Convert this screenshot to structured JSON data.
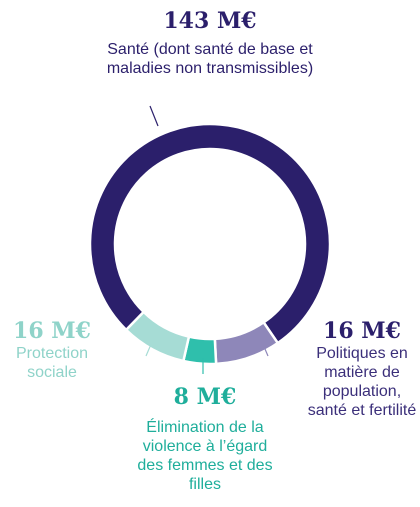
{
  "chart_data": {
    "type": "donut",
    "categories": [
      "Santé (dont santé de base et maladies non transmissibles)",
      "Politiques en matière de population, santé et fertilité",
      "Élimination de la violence à l’égard des femmes et des filles",
      "Protection sociale"
    ],
    "values": [
      143,
      16,
      8,
      16
    ],
    "value_labels": [
      "143 M€",
      "16 M€",
      "8 M€",
      "16 M€"
    ],
    "colors": [
      "#2b1f6b",
      "#8e87b9",
      "#2fbfac",
      "#a6dcd5"
    ]
  }
}
